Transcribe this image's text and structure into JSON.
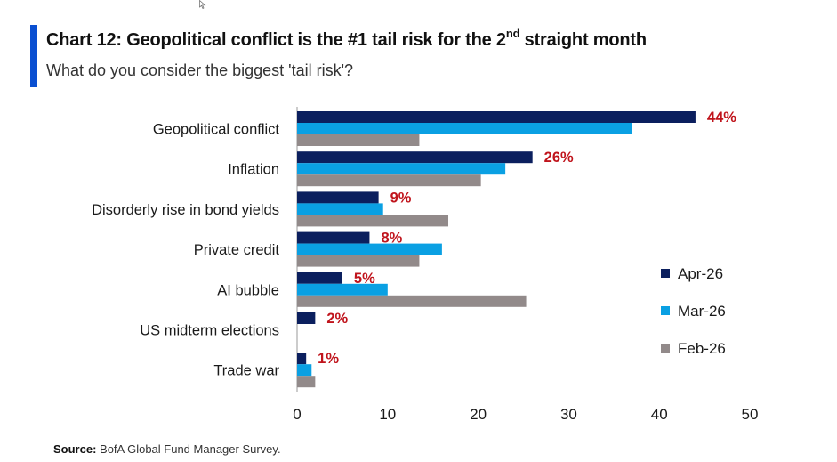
{
  "header": {
    "title_pre": "Chart 12: Geopolitical conflict is the #1 tail risk for the 2",
    "title_sup": "nd",
    "title_post": " straight month",
    "subtitle": "What do you consider the biggest 'tail risk'?"
  },
  "footer": {
    "source_label": "Source:",
    "source_text": " BofA Global Fund Manager Survey."
  },
  "chart_data": {
    "type": "bar",
    "orientation": "horizontal",
    "categories": [
      "Geopolitical conflict",
      "Inflation",
      "Disorderly rise in bond yields",
      "Private credit",
      "AI bubble",
      "US midterm elections",
      "Trade war"
    ],
    "series": [
      {
        "name": "Apr-26",
        "color": "#0b1f5e",
        "values": [
          44,
          26,
          9,
          8,
          5,
          2,
          1
        ]
      },
      {
        "name": "Mar-26",
        "color": "#0aa0e3",
        "values": [
          37,
          23,
          9.5,
          16,
          10,
          0,
          1.6
        ]
      },
      {
        "name": "Feb-26",
        "color": "#928a8a",
        "values": [
          13.5,
          20.3,
          16.7,
          13.5,
          25.3,
          0,
          2
        ]
      }
    ],
    "data_labels": [
      "44%",
      "26%",
      "9%",
      "8%",
      "5%",
      "2%",
      "1%"
    ],
    "data_label_color": "#c0141c",
    "xlim": [
      0,
      50
    ],
    "xticks": [
      0,
      10,
      20,
      30,
      40,
      50
    ],
    "grid": false,
    "legend_position": "right"
  }
}
